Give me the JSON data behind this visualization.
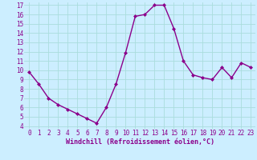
{
  "hours": [
    0,
    1,
    2,
    3,
    4,
    5,
    6,
    7,
    8,
    9,
    10,
    11,
    12,
    13,
    14,
    15,
    16,
    17,
    18,
    19,
    20,
    21,
    22,
    23
  ],
  "values": [
    9.8,
    8.5,
    7.0,
    6.3,
    5.8,
    5.3,
    4.8,
    4.3,
    6.0,
    8.5,
    11.9,
    15.8,
    16.0,
    17.0,
    17.0,
    14.5,
    11.0,
    9.5,
    9.2,
    9.0,
    10.3,
    9.2,
    10.8,
    10.3
  ],
  "line_color": "#8b008b",
  "marker": "D",
  "marker_size": 2.0,
  "bg_color": "#cceeff",
  "grid_color": "#aadddd",
  "xlabel": "Windchill (Refroidissement éolien,°C)",
  "xlabel_color": "#8b008b",
  "tick_color": "#8b008b",
  "label_bg_color": "#9955aa",
  "ylim_min": 4,
  "ylim_max": 17,
  "xlim_min": 0,
  "xlim_max": 23,
  "yticks": [
    4,
    5,
    6,
    7,
    8,
    9,
    10,
    11,
    12,
    13,
    14,
    15,
    16,
    17
  ],
  "xticks": [
    0,
    1,
    2,
    3,
    4,
    5,
    6,
    7,
    8,
    9,
    10,
    11,
    12,
    13,
    14,
    15,
    16,
    17,
    18,
    19,
    20,
    21,
    22,
    23
  ],
  "tick_fontsize": 5.5,
  "xlabel_fontsize": 6.0,
  "linewidth": 1.0
}
